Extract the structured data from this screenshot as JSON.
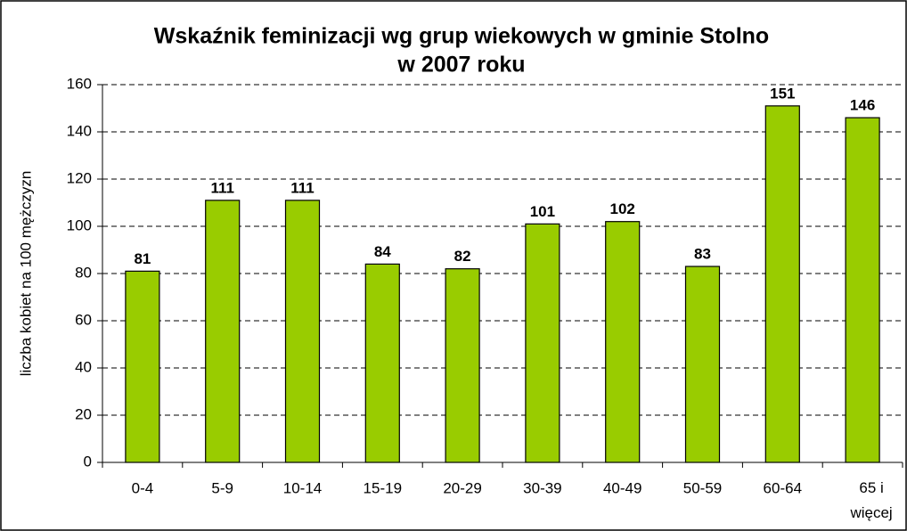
{
  "chart_data": {
    "type": "bar",
    "title": [
      "Wskaźnik feminizacji wg grup wiekowych w gminie Stolno",
      "w 2007 roku"
    ],
    "y_axis_label": "liczba kobiet na 100 mężczyzn",
    "categories": [
      "0-4",
      "5-9",
      "10-14",
      "15-19",
      "20-29",
      "30-39",
      "40-49",
      "50-59",
      "60-64",
      "65 i więcej"
    ],
    "values": [
      81,
      111,
      111,
      84,
      82,
      101,
      102,
      83,
      151,
      146
    ],
    "color": "#99cc00",
    "ylim": [
      0,
      160
    ],
    "yticks": [
      0,
      20,
      40,
      60,
      80,
      100,
      120,
      140,
      160
    ],
    "grid": true
  }
}
